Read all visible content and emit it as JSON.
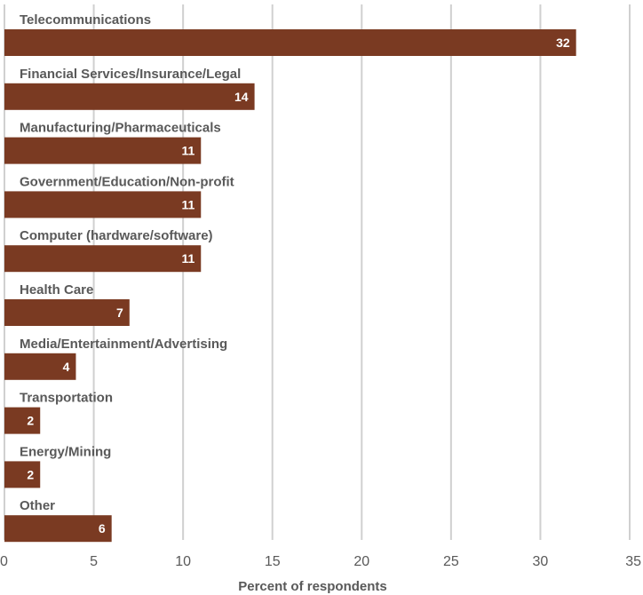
{
  "chart_data": {
    "type": "bar",
    "orientation": "horizontal",
    "categories": [
      "Telecommunications",
      "Financial Services/Insurance/Legal",
      "Manufacturing/Pharmaceuticals",
      "Government/Education/Non-profit",
      "Computer (hardware/software)",
      "Health Care",
      "Media/Entertainment/Advertising",
      "Transportation",
      "Energy/Mining",
      "Other"
    ],
    "values": [
      32,
      14,
      11,
      11,
      11,
      7,
      4,
      2,
      2,
      6
    ],
    "xlabel": "Percent of respondents",
    "ylabel": "",
    "xlim": [
      0,
      35
    ],
    "xticks": [
      "0",
      "5",
      "10",
      "15",
      "20",
      "25",
      "30",
      "35"
    ],
    "grid": "vertical",
    "legend": "none",
    "data_labels": "inside-end",
    "colors": {
      "bar": "#7a3a22",
      "grid": "#d0d0d0",
      "text": "#595959",
      "value_text": "#ffffff"
    }
  }
}
